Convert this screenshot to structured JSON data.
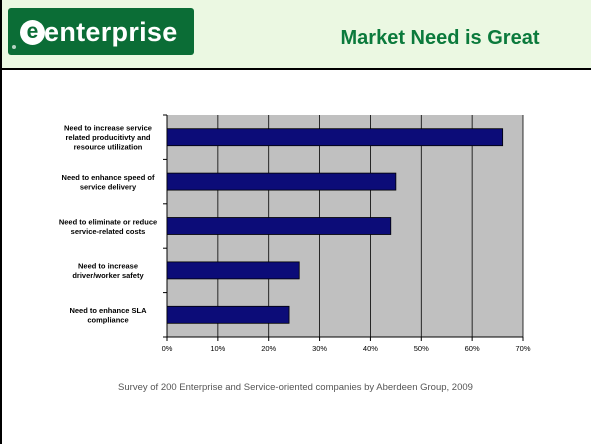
{
  "header": {
    "logo_text": "enterprise",
    "logo_initial": "e",
    "title": "Market Need is Great"
  },
  "colors": {
    "header_bg": "#ebf8e2",
    "logo_green": "#0b6d36",
    "title_green": "#0b7a3c",
    "bar_fill": "#0c0c78",
    "plot_bg": "#c0c0c0"
  },
  "chart_data": {
    "type": "bar",
    "orientation": "horizontal",
    "categories": [
      [
        "Need to increase service",
        "related producitivty and",
        "resource utilization"
      ],
      [
        "Need to enhance speed of",
        "service delivery"
      ],
      [
        "Need to eliminate or reduce",
        "service-related costs"
      ],
      [
        "Need to increase",
        "driver/worker safety"
      ],
      [
        "Need to enhance SLA",
        "compliance"
      ]
    ],
    "values": [
      66,
      45,
      44,
      26,
      24
    ],
    "xlim": [
      0,
      70
    ],
    "xticks": [
      "0%",
      "10%",
      "20%",
      "30%",
      "40%",
      "50%",
      "60%",
      "70%"
    ],
    "grid": true
  },
  "caption": "Survey of 200 Enterprise and Service-oriented companies by Aberdeen Group, 2009"
}
